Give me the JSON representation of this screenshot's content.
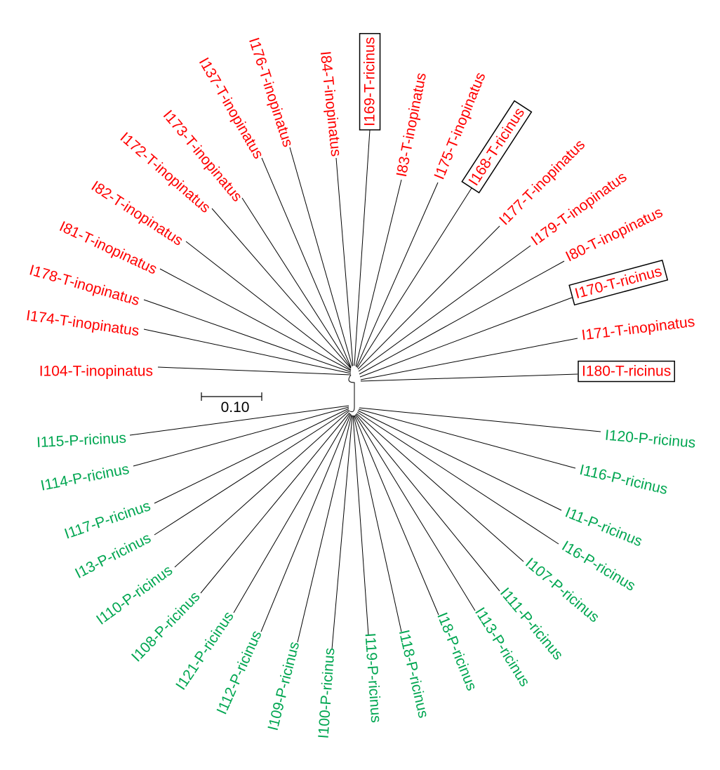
{
  "colors": {
    "red_group": "#ff0000",
    "green_group": "#00a651",
    "branch": "#000000"
  },
  "scale_bar": {
    "label": "0.10"
  },
  "leaves": [
    {
      "label": "I104-T-inopinatus",
      "group": "red",
      "boxed": false
    },
    {
      "label": "I174-T-inopinatus",
      "group": "red",
      "boxed": false
    },
    {
      "label": "I178-T-inopinatus",
      "group": "red",
      "boxed": false
    },
    {
      "label": "I81-T-inopinatus",
      "group": "red",
      "boxed": false
    },
    {
      "label": "I82-T-inopinatus",
      "group": "red",
      "boxed": false
    },
    {
      "label": "I172-T-inopinatus",
      "group": "red",
      "boxed": false
    },
    {
      "label": "I173-T-inopinatus",
      "group": "red",
      "boxed": false
    },
    {
      "label": "I137-T-inopinatus",
      "group": "red",
      "boxed": false
    },
    {
      "label": "I176-T-inopinatus",
      "group": "red",
      "boxed": false
    },
    {
      "label": "I84-T-inopinatus",
      "group": "red",
      "boxed": false
    },
    {
      "label": "I169-T-ricinus",
      "group": "red",
      "boxed": true
    },
    {
      "label": "I83-T-inopinatus",
      "group": "red",
      "boxed": false
    },
    {
      "label": "I175-T-inopinatus",
      "group": "red",
      "boxed": false
    },
    {
      "label": "I168-T-ricinus",
      "group": "red",
      "boxed": true
    },
    {
      "label": "I177-T-inopinatus",
      "group": "red",
      "boxed": false
    },
    {
      "label": "I179-T-inopinatus",
      "group": "red",
      "boxed": false
    },
    {
      "label": "I80-T-inopinatus",
      "group": "red",
      "boxed": false
    },
    {
      "label": "I170-T-ricinus",
      "group": "red",
      "boxed": true
    },
    {
      "label": "I171-T-inopinatus",
      "group": "red",
      "boxed": false
    },
    {
      "label": "I180-T-ricinus",
      "group": "red",
      "boxed": true
    },
    {
      "label": "I120-P-ricinus",
      "group": "green",
      "boxed": false
    },
    {
      "label": "I116-P-ricinus",
      "group": "green",
      "boxed": false
    },
    {
      "label": "I11-P-ricinus",
      "group": "green",
      "boxed": false
    },
    {
      "label": "I16-P-ricinus",
      "group": "green",
      "boxed": false
    },
    {
      "label": "I107-P-ricinus",
      "group": "green",
      "boxed": false
    },
    {
      "label": "I111-P-ricinus",
      "group": "green",
      "boxed": false
    },
    {
      "label": "I113-P-ricinus",
      "group": "green",
      "boxed": false
    },
    {
      "label": "I18-P-ricinus",
      "group": "green",
      "boxed": false
    },
    {
      "label": "I118-P-ricinus",
      "group": "green",
      "boxed": false
    },
    {
      "label": "I119-P-ricinus",
      "group": "green",
      "boxed": false
    },
    {
      "label": "I100-P-ricinus",
      "group": "green",
      "boxed": false
    },
    {
      "label": "I109-P-ricinus",
      "group": "green",
      "boxed": false
    },
    {
      "label": "I112-P-ricinus",
      "group": "green",
      "boxed": false
    },
    {
      "label": "I121-P-ricinus",
      "group": "green",
      "boxed": false
    },
    {
      "label": "I108-P-ricinus",
      "group": "green",
      "boxed": false
    },
    {
      "label": "I110-P-ricinus",
      "group": "green",
      "boxed": false
    },
    {
      "label": "I13-P-ricinus",
      "group": "green",
      "boxed": false
    },
    {
      "label": "I117-P-ricinus",
      "group": "green",
      "boxed": false
    },
    {
      "label": "I114-P-ricinus",
      "group": "green",
      "boxed": false
    },
    {
      "label": "I115-P-ricinus",
      "group": "green",
      "boxed": false
    }
  ]
}
